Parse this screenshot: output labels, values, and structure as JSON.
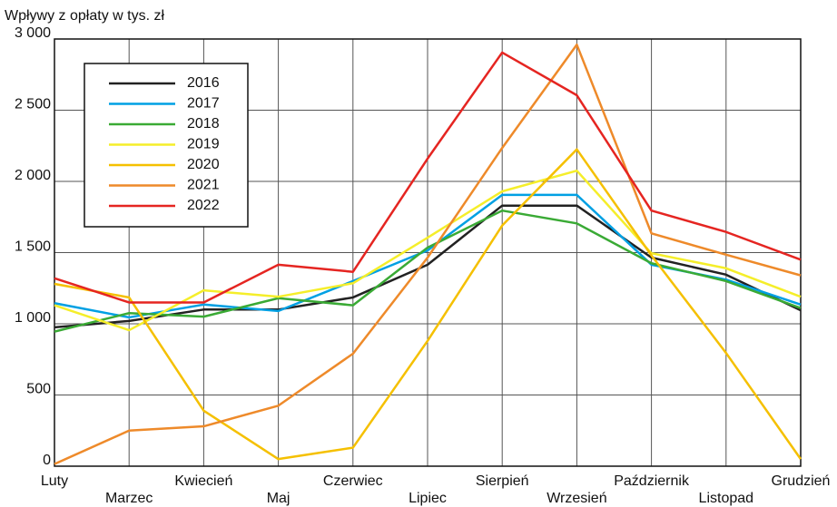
{
  "chart_data": {
    "type": "line",
    "title": "Wpływy z opłaty w tys. zł",
    "categories": [
      "Luty",
      "Marzec",
      "Kwiecień",
      "Maj",
      "Czerwiec",
      "Lipiec",
      "Sierpień",
      "Wrzesień",
      "Październik",
      "Listopad",
      "Grudzień"
    ],
    "series": [
      {
        "name": "2016",
        "color": "#222222",
        "values": [
          975,
          1020,
          1100,
          1100,
          1185,
          1415,
          1830,
          1830,
          1465,
          1345,
          1095
        ]
      },
      {
        "name": "2017",
        "color": "#00a0e3",
        "values": [
          1145,
          1045,
          1135,
          1090,
          1300,
          1515,
          1905,
          1905,
          1415,
          1310,
          1135
        ]
      },
      {
        "name": "2018",
        "color": "#3aaa35",
        "values": [
          945,
          1075,
          1050,
          1180,
          1130,
          1535,
          1795,
          1705,
          1425,
          1300,
          1110
        ]
      },
      {
        "name": "2019",
        "color": "#f5ee2a",
        "values": [
          1130,
          955,
          1235,
          1190,
          1285,
          1605,
          1930,
          2075,
          1495,
          1390,
          1190
        ]
      },
      {
        "name": "2020",
        "color": "#f5c000",
        "values": [
          1280,
          1185,
          390,
          50,
          130,
          880,
          1690,
          2225,
          1480,
          795,
          50
        ]
      },
      {
        "name": "2021",
        "color": "#ee8a2a",
        "values": [
          15,
          250,
          280,
          425,
          790,
          1465,
          2235,
          2960,
          1635,
          1485,
          1340
        ]
      },
      {
        "name": "2022",
        "color": "#e52521",
        "values": [
          1320,
          1150,
          1150,
          1415,
          1365,
          2160,
          2905,
          2605,
          1795,
          1645,
          1450
        ]
      }
    ],
    "ylim": [
      0,
      3000
    ],
    "yticks": [
      0,
      500,
      {
        "value": 1000,
        "label": "1 000"
      },
      {
        "value": 1500,
        "label": "1 500"
      },
      {
        "value": 2000,
        "label": "2 000"
      },
      {
        "value": 2500,
        "label": "2 500"
      },
      {
        "value": 3000,
        "label": "3 000"
      }
    ],
    "grid": true,
    "legend": "upper left"
  }
}
